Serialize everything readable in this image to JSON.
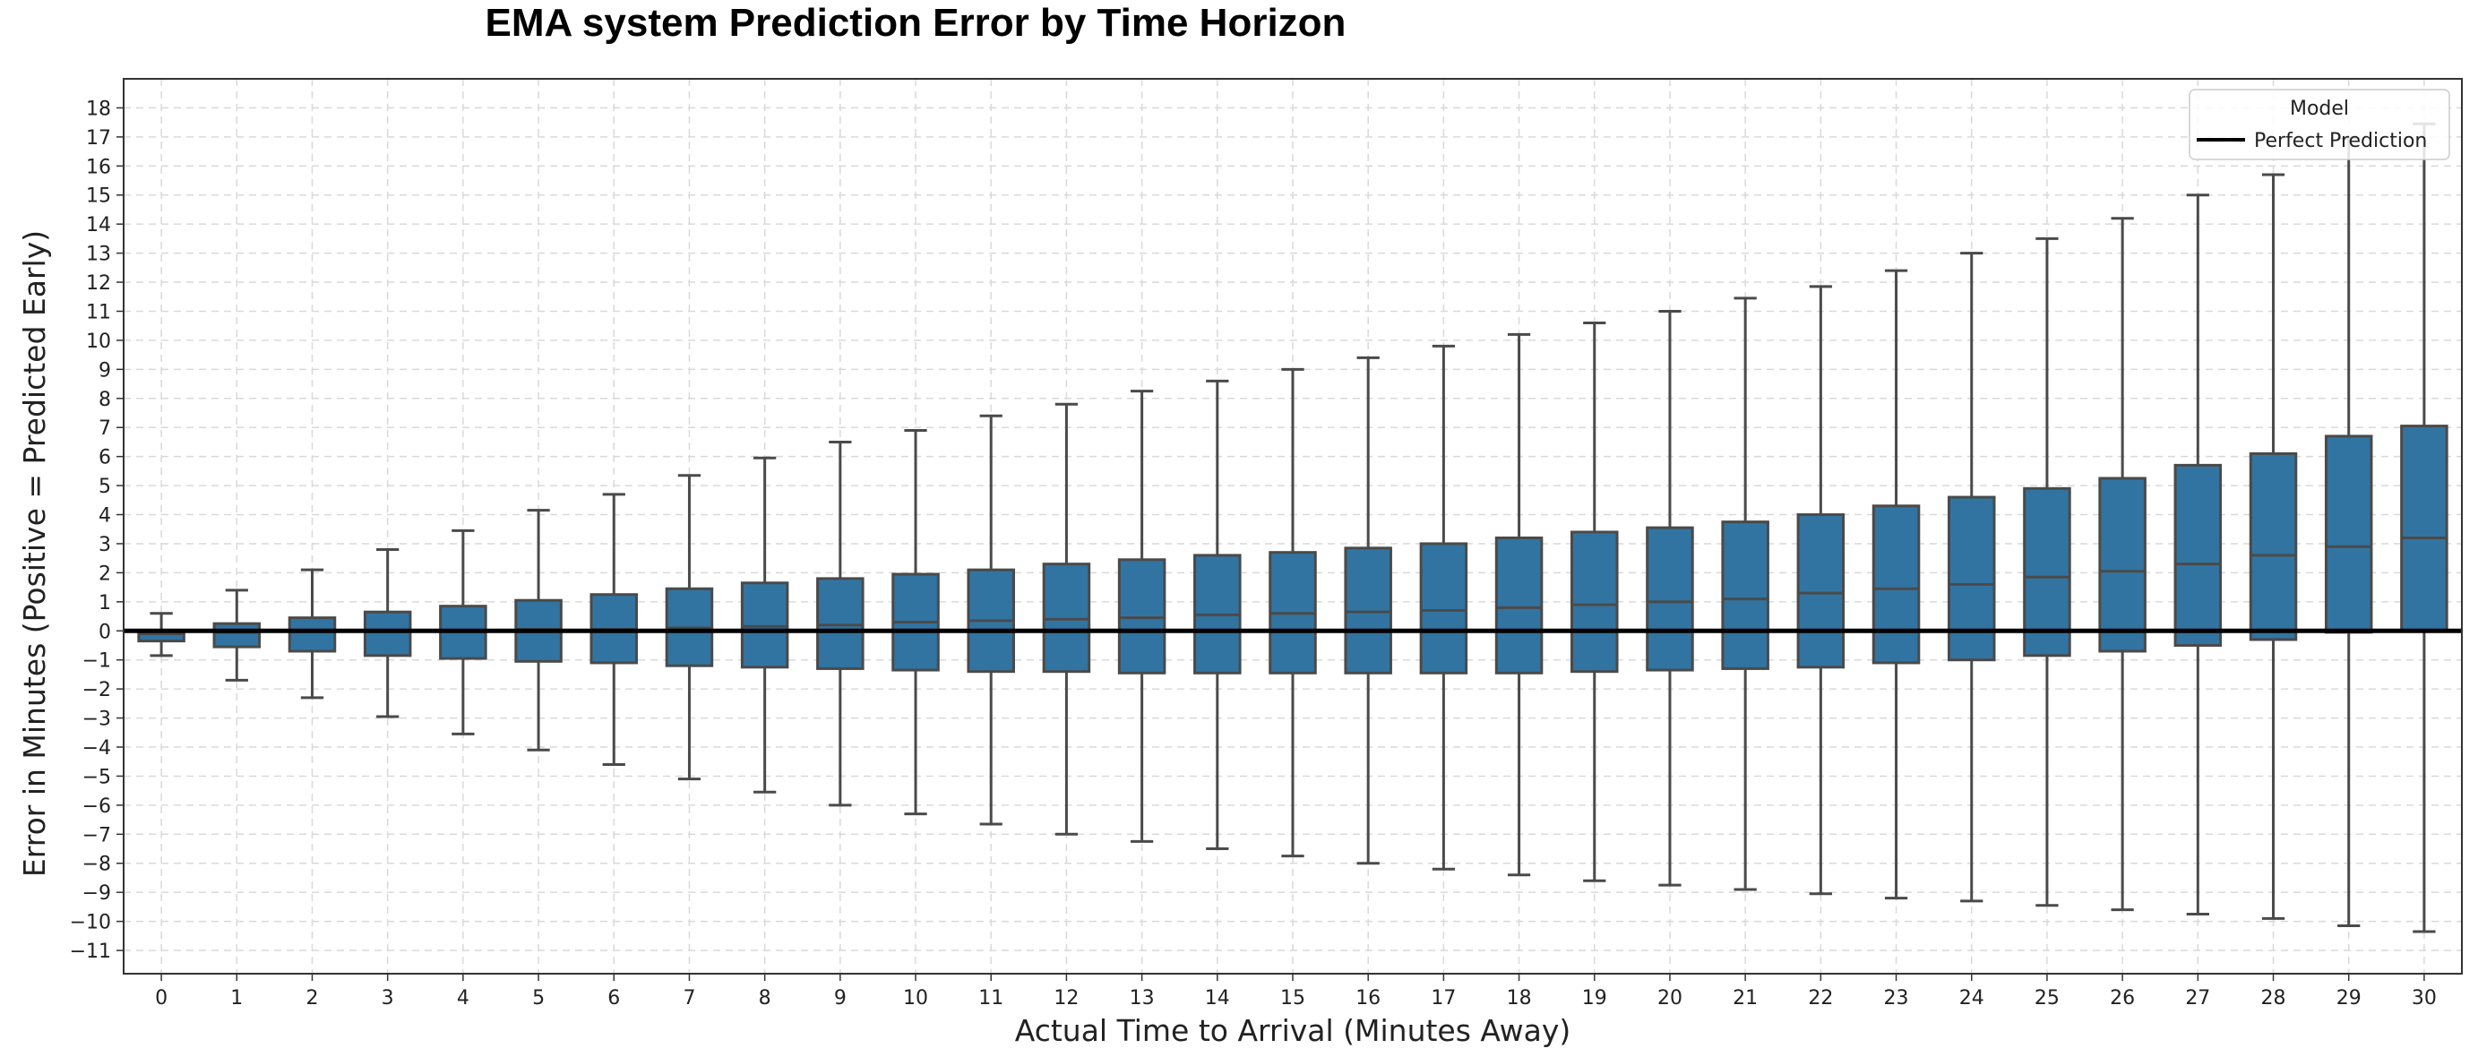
{
  "chart_data": {
    "type": "box",
    "title": "EMA system Prediction Error by Time Horizon",
    "xlabel": "Actual Time to Arrival (Minutes Away)",
    "ylabel": "Error in Minutes (Positive = Predicted Early)",
    "ylim": [
      -11.8,
      19.0
    ],
    "yticks": [
      -11,
      -10,
      -9,
      -8,
      -7,
      -6,
      -5,
      -4,
      -3,
      -2,
      -1,
      0,
      1,
      2,
      3,
      4,
      5,
      6,
      7,
      8,
      9,
      10,
      11,
      12,
      13,
      14,
      15,
      16,
      17,
      18
    ],
    "grid": true,
    "box_color": "#3274a1",
    "edge_color": "#4a4a4a",
    "reference_line": {
      "y": 0,
      "label": "Perfect Prediction",
      "color": "#000000"
    },
    "legend": {
      "title": "Model",
      "placement": "top-right",
      "entries": [
        "Perfect Prediction"
      ]
    },
    "categories": [
      "0",
      "1",
      "2",
      "3",
      "4",
      "5",
      "6",
      "7",
      "8",
      "9",
      "10",
      "11",
      "12",
      "13",
      "14",
      "15",
      "16",
      "17",
      "18",
      "19",
      "20",
      "21",
      "22",
      "23",
      "24",
      "25",
      "26",
      "27",
      "28",
      "29",
      "30"
    ],
    "series": [
      {
        "min": [
          -0.85,
          -1.7,
          -2.3,
          -2.95,
          -3.55,
          -4.1,
          -4.6,
          -5.1,
          -5.55,
          -6.0,
          -6.3,
          -6.65,
          -7.0,
          -7.25,
          -7.5,
          -7.75,
          -8.0,
          -8.2,
          -8.4,
          -8.6,
          -8.75,
          -8.9,
          -9.05,
          -9.2,
          -9.3,
          -9.45,
          -9.6,
          -9.75,
          -9.9,
          -10.15,
          -10.35
        ],
        "q1": [
          -0.35,
          -0.55,
          -0.7,
          -0.85,
          -0.95,
          -1.05,
          -1.1,
          -1.2,
          -1.25,
          -1.3,
          -1.35,
          -1.4,
          -1.4,
          -1.45,
          -1.45,
          -1.45,
          -1.45,
          -1.45,
          -1.45,
          -1.4,
          -1.35,
          -1.3,
          -1.25,
          -1.1,
          -1.0,
          -0.85,
          -0.7,
          -0.5,
          -0.3,
          -0.05,
          0.0
        ],
        "median": [
          -0.1,
          -0.05,
          0.0,
          0.0,
          0.0,
          0.05,
          0.05,
          0.1,
          0.15,
          0.2,
          0.3,
          0.35,
          0.4,
          0.45,
          0.55,
          0.6,
          0.65,
          0.7,
          0.8,
          0.9,
          1.0,
          1.1,
          1.3,
          1.45,
          1.6,
          1.85,
          2.05,
          2.3,
          2.6,
          2.9,
          3.2
        ],
        "q3": [
          0.0,
          0.25,
          0.45,
          0.65,
          0.85,
          1.05,
          1.25,
          1.45,
          1.65,
          1.8,
          1.95,
          2.1,
          2.3,
          2.45,
          2.6,
          2.7,
          2.85,
          3.0,
          3.2,
          3.4,
          3.55,
          3.75,
          4.0,
          4.3,
          4.6,
          4.9,
          5.25,
          5.7,
          6.1,
          6.7,
          7.05
        ],
        "max": [
          0.6,
          1.4,
          2.1,
          2.8,
          3.45,
          4.15,
          4.7,
          5.35,
          5.95,
          6.5,
          6.9,
          7.4,
          7.8,
          8.25,
          8.6,
          9.0,
          9.4,
          9.8,
          10.2,
          10.6,
          11.0,
          11.45,
          11.85,
          12.4,
          13.0,
          13.5,
          14.2,
          15.0,
          15.7,
          16.95,
          17.45
        ]
      }
    ]
  }
}
